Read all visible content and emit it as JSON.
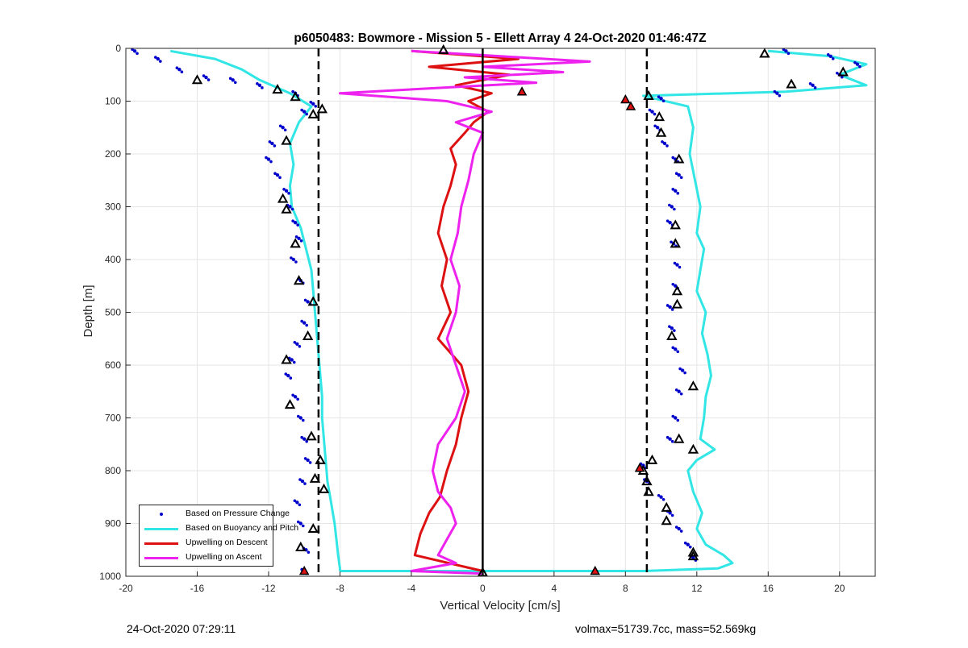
{
  "chart_data": {
    "type": "scatter",
    "title": "p6050483: Bowmore - Mission 5 - Ellett Array 4 24-Oct-2020 01:46:47Z",
    "xlabel": "Vertical Velocity [cm/s]",
    "ylabel": "Depth [m]",
    "xlim": [
      -20,
      22
    ],
    "ylim": [
      0,
      1000
    ],
    "y_reversed": true,
    "grid": true,
    "x_ticks": [
      "-20",
      "-16",
      "-12",
      "-8",
      "-4",
      "0",
      "4",
      "8",
      "12",
      "16",
      "20"
    ],
    "y_ticks": [
      "0",
      "100",
      "200",
      "300",
      "400",
      "500",
      "600",
      "700",
      "800",
      "900",
      "1000"
    ],
    "x_tick_values": [
      -20,
      -16,
      -12,
      -8,
      -4,
      0,
      4,
      8,
      12,
      16,
      20
    ],
    "y_tick_values": [
      0,
      100,
      200,
      300,
      400,
      500,
      600,
      700,
      800,
      900,
      1000
    ],
    "legend_position": "bottom-left",
    "reference_lines": {
      "zero_line": 0,
      "dashed_lines": [
        -9.2,
        9.2
      ]
    },
    "series": [
      {
        "name": "Based on Pressure Change",
        "color": "#0000cc",
        "style": "points",
        "side": "descent",
        "x": [
          -19.5,
          -18.2,
          -17.0,
          -15.5,
          -14.0,
          -12.5,
          -10.5,
          -9.5,
          -10.0,
          -11.2,
          -11.8,
          -12.0,
          -11.5,
          -11.0,
          -10.8,
          -10.5,
          -10.3,
          -10.6,
          -10.2,
          -9.8,
          -10.0,
          -10.4,
          -10.7,
          -10.9,
          -10.5,
          -10.2,
          -10.0,
          -9.8,
          -10.1,
          -10.4,
          -10.2,
          -9.9,
          -10.0
        ],
        "y": [
          5,
          20,
          40,
          55,
          60,
          70,
          85,
          105,
          120,
          150,
          180,
          210,
          240,
          270,
          300,
          330,
          360,
          400,
          440,
          480,
          520,
          560,
          590,
          620,
          660,
          700,
          740,
          780,
          820,
          860,
          900,
          950,
          990
        ]
      },
      {
        "name": "Based on Buoyancy and Pitch",
        "color": "#33e6e6",
        "style": "line",
        "side": "descent",
        "x": [
          -17.5,
          -15.0,
          -13.5,
          -12.5,
          -10.8,
          -9.6,
          -10.3,
          -10.8,
          -10.6,
          -10.8,
          -10.7,
          -10.2,
          -9.9,
          -9.6,
          -9.5,
          -9.4,
          -9.3,
          -9.2,
          -9.1,
          -9.0,
          -9.0,
          -8.9,
          -8.8,
          -8.7,
          -8.5,
          -8.3,
          -8.2,
          -8.1,
          -8.0,
          -8.0
        ],
        "y": [
          5,
          20,
          40,
          60,
          85,
          110,
          140,
          180,
          220,
          260,
          300,
          340,
          380,
          420,
          460,
          500,
          540,
          580,
          620,
          660,
          700,
          740,
          780,
          820,
          860,
          900,
          930,
          960,
          985,
          990
        ]
      },
      {
        "name": "Based on Pressure Change (ascent)",
        "color": "#0000cc",
        "style": "points",
        "side": "ascent",
        "x": [
          17.0,
          19.5,
          21.0,
          20.0,
          18.5,
          16.5,
          10.0,
          9.5,
          9.8,
          10.2,
          10.8,
          11.0,
          10.8,
          10.6,
          10.5,
          10.7,
          10.9,
          10.8,
          10.5,
          10.6,
          10.8,
          11.2,
          11.0,
          10.8,
          10.5,
          9.0,
          9.2,
          10.0,
          10.5,
          11.0,
          11.5,
          11.8
        ],
        "y": [
          5,
          15,
          30,
          50,
          70,
          85,
          95,
          120,
          150,
          180,
          210,
          240,
          270,
          300,
          330,
          370,
          410,
          450,
          490,
          530,
          570,
          610,
          650,
          700,
          740,
          790,
          820,
          850,
          880,
          910,
          940,
          965
        ]
      },
      {
        "name": "Based on Buoyancy and Pitch (ascent)",
        "color": "#33e6e6",
        "style": "line",
        "side": "ascent",
        "x": [
          16.0,
          19.5,
          21.5,
          20.0,
          21.5,
          17.0,
          9.0,
          11.5,
          11.8,
          11.6,
          11.9,
          12.2,
          12.0,
          12.4,
          12.2,
          12.0,
          12.5,
          12.3,
          12.6,
          12.8,
          12.5,
          12.4,
          12.2,
          13.0,
          12.0,
          11.5,
          11.8,
          12.3,
          12.0,
          12.5,
          13.5,
          14.0,
          13.2,
          9.0,
          4.0,
          0.0,
          -4.0,
          -8.0
        ],
        "y": [
          5,
          15,
          30,
          50,
          70,
          82,
          90,
          110,
          150,
          200,
          250,
          300,
          350,
          380,
          420,
          460,
          500,
          540,
          580,
          620,
          660,
          700,
          740,
          760,
          780,
          800,
          840,
          880,
          910,
          940,
          960,
          975,
          985,
          990,
          990,
          990,
          990,
          990
        ]
      },
      {
        "name": "Upwelling on Descent",
        "color": "#dd1111",
        "style": "line",
        "x": [
          -4.0,
          2.0,
          -3.0,
          1.5,
          -1.5,
          0.5,
          -0.8,
          0.3,
          -0.5,
          -1.0,
          -1.8,
          -1.5,
          -1.8,
          -2.2,
          -2.5,
          -2.0,
          -2.3,
          -1.8,
          -2.5,
          -1.2,
          -0.8,
          -1.2,
          -1.5,
          -2.0,
          -2.4,
          -3.0,
          -3.5,
          -3.8,
          0.0
        ],
        "y": [
          5,
          20,
          35,
          50,
          70,
          85,
          100,
          120,
          140,
          160,
          190,
          220,
          260,
          300,
          350,
          400,
          450,
          500,
          550,
          600,
          650,
          700,
          750,
          800,
          850,
          880,
          920,
          960,
          990
        ]
      },
      {
        "name": "Upwelling on Ascent",
        "color": "#ee22ee",
        "style": "line",
        "x": [
          -4.0,
          1.0,
          6.0,
          0.0,
          4.5,
          -1.0,
          3.0,
          -8.0,
          -2.0,
          0.5,
          -1.5,
          0.0,
          -0.5,
          -0.8,
          -1.2,
          -1.4,
          -1.8,
          -1.3,
          -1.5,
          -2.0,
          -1.5,
          -1.0,
          -1.5,
          -2.5,
          -2.8,
          -2.5,
          -1.8,
          -1.5,
          -2.0,
          -2.5,
          -1.5,
          -4.0,
          0.0
        ],
        "y": [
          5,
          15,
          25,
          35,
          45,
          55,
          65,
          85,
          100,
          120,
          140,
          160,
          200,
          250,
          300,
          350,
          400,
          450,
          500,
          550,
          600,
          650,
          700,
          750,
          800,
          840,
          870,
          900,
          930,
          960,
          975,
          990,
          995
        ]
      }
    ],
    "open_triangles": [
      {
        "x": -16.0,
        "y": 60
      },
      {
        "x": -11.5,
        "y": 78
      },
      {
        "x": -10.5,
        "y": 92
      },
      {
        "x": -9.0,
        "y": 115
      },
      {
        "x": -9.5,
        "y": 125
      },
      {
        "x": -11.0,
        "y": 175
      },
      {
        "x": -11.2,
        "y": 285
      },
      {
        "x": -11.0,
        "y": 305
      },
      {
        "x": -10.5,
        "y": 370
      },
      {
        "x": -10.3,
        "y": 440
      },
      {
        "x": -9.5,
        "y": 480
      },
      {
        "x": -9.8,
        "y": 545
      },
      {
        "x": -11.0,
        "y": 590
      },
      {
        "x": -10.8,
        "y": 675
      },
      {
        "x": -9.6,
        "y": 735
      },
      {
        "x": -9.1,
        "y": 780
      },
      {
        "x": -9.4,
        "y": 815
      },
      {
        "x": -8.9,
        "y": 835
      },
      {
        "x": -9.5,
        "y": 910
      },
      {
        "x": -10.2,
        "y": 945
      },
      {
        "x": -2.2,
        "y": 3
      },
      {
        "x": 0.0,
        "y": 993
      },
      {
        "x": 15.8,
        "y": 10
      },
      {
        "x": 20.2,
        "y": 45
      },
      {
        "x": 17.3,
        "y": 68
      },
      {
        "x": 9.3,
        "y": 90
      },
      {
        "x": 9.9,
        "y": 130
      },
      {
        "x": 10.0,
        "y": 160
      },
      {
        "x": 11.0,
        "y": 210
      },
      {
        "x": 10.8,
        "y": 335
      },
      {
        "x": 10.8,
        "y": 370
      },
      {
        "x": 10.9,
        "y": 460
      },
      {
        "x": 10.9,
        "y": 485
      },
      {
        "x": 10.6,
        "y": 545
      },
      {
        "x": 11.8,
        "y": 640
      },
      {
        "x": 11.0,
        "y": 740
      },
      {
        "x": 11.8,
        "y": 760
      },
      {
        "x": 9.5,
        "y": 780
      },
      {
        "x": 9.0,
        "y": 800
      },
      {
        "x": 9.2,
        "y": 820
      },
      {
        "x": 9.3,
        "y": 840
      },
      {
        "x": 10.3,
        "y": 870
      },
      {
        "x": 10.3,
        "y": 895
      },
      {
        "x": 11.8,
        "y": 955
      },
      {
        "x": 11.8,
        "y": 962
      }
    ],
    "filled_triangles": [
      {
        "x": -10.0,
        "y": 990
      },
      {
        "x": 2.2,
        "y": 82
      },
      {
        "x": 8.0,
        "y": 97
      },
      {
        "x": 8.3,
        "y": 110
      },
      {
        "x": 8.8,
        "y": 795
      },
      {
        "x": 6.3,
        "y": 990
      }
    ]
  },
  "footer": {
    "timestamp": "24-Oct-2020 07:29:11",
    "stats": "volmax=51739.7cc, mass=52.569kg"
  },
  "legend": {
    "items": [
      {
        "label": "Based on Pressure Change",
        "color": "#0000cc",
        "kind": "dot"
      },
      {
        "label": "Based on Buoyancy and Pitch",
        "color": "#33e6e6",
        "kind": "line"
      },
      {
        "label": "Upwelling on Descent",
        "color": "#dd1111",
        "kind": "line"
      },
      {
        "label": "Upwelling on Ascent",
        "color": "#ee22ee",
        "kind": "line"
      }
    ]
  }
}
